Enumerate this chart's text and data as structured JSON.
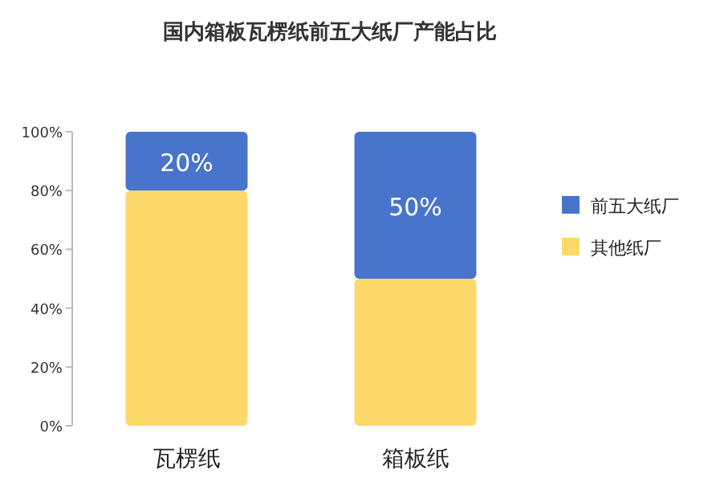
{
  "chart_data": {
    "type": "bar",
    "title": "国内箱板瓦楞纸前五大纸厂产能占比",
    "categories": [
      "瓦楞纸",
      "箱板纸"
    ],
    "stacked": true,
    "ylim": [
      0,
      100
    ],
    "yticks": [
      {
        "value": 0,
        "label": "0%"
      },
      {
        "value": 20,
        "label": "20%"
      },
      {
        "value": 40,
        "label": "40%"
      },
      {
        "value": 60,
        "label": "60%"
      },
      {
        "value": 80,
        "label": "80%"
      },
      {
        "value": 100,
        "label": "100%"
      }
    ],
    "legend": "right",
    "grid": false,
    "series": [
      {
        "name": "其他纸厂",
        "color": "#fcd96a",
        "values": [
          80,
          50
        ]
      },
      {
        "name": "前五大纸厂",
        "color": "#4874cb",
        "values": [
          20,
          50
        ],
        "value_labels": [
          "20%",
          "50%"
        ]
      }
    ]
  }
}
